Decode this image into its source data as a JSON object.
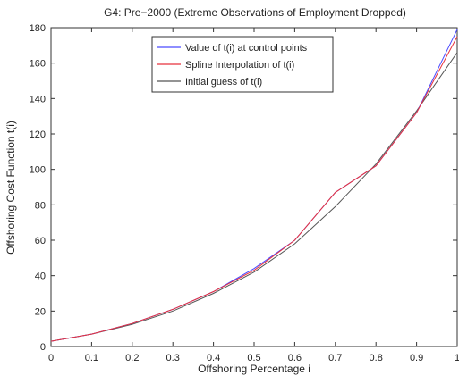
{
  "chart_data": {
    "type": "line",
    "title": "G4: Pre−2000 (Extreme Observations of Employment Dropped)",
    "xlabel": "Offshoring Percentage i",
    "ylabel": "Offshoring Cost Function t(i)",
    "xlim": [
      0,
      1
    ],
    "ylim": [
      0,
      180
    ],
    "xticks": [
      "0",
      "0.1",
      "0.2",
      "0.3",
      "0.4",
      "0.5",
      "0.6",
      "0.7",
      "0.8",
      "0.9",
      "1"
    ],
    "yticks": [
      "0",
      "20",
      "40",
      "60",
      "80",
      "100",
      "120",
      "140",
      "160",
      "180"
    ],
    "grid": false,
    "legend": "top-center",
    "series": [
      {
        "name": "Value of t(i) at control points",
        "color": "#4a4aff",
        "x": [
          0,
          0.1,
          0.2,
          0.3,
          0.4,
          0.5,
          0.6,
          0.7,
          0.8,
          0.9,
          1.0
        ],
        "y": [
          3,
          7,
          13,
          21,
          31,
          44,
          60,
          87,
          102,
          132,
          179
        ]
      },
      {
        "name": "Spline Interpolation of t(i)",
        "color": "#e8323c",
        "x": [
          0,
          0.1,
          0.2,
          0.3,
          0.4,
          0.5,
          0.6,
          0.7,
          0.8,
          0.9,
          1.0
        ],
        "y": [
          3,
          7,
          13,
          21,
          31,
          43,
          60,
          87,
          102,
          132,
          175
        ]
      },
      {
        "name": "Initial guess of t(i)",
        "color": "#555555",
        "x": [
          0,
          0.1,
          0.2,
          0.3,
          0.4,
          0.5,
          0.6,
          0.7,
          0.8,
          0.9,
          1.0
        ],
        "y": [
          3,
          7,
          12.5,
          20,
          30,
          42,
          58,
          79,
          103,
          133,
          166
        ]
      }
    ]
  }
}
